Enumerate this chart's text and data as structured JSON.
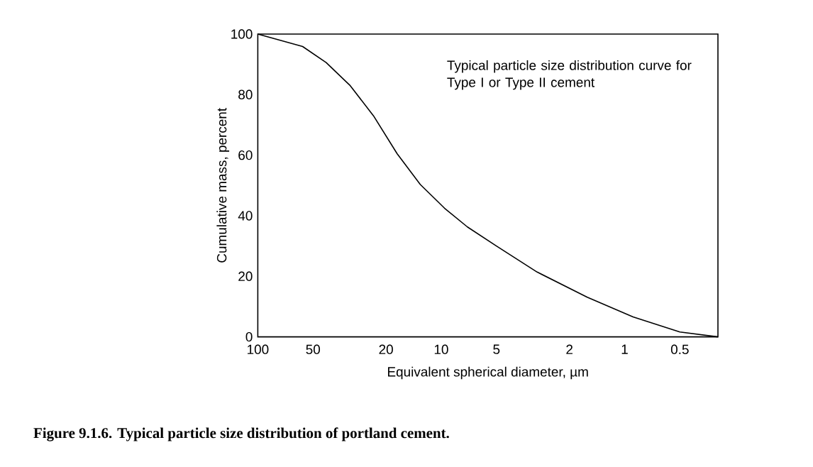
{
  "chart_data": {
    "type": "line",
    "xlabel": "Equivalent spherical diameter, µm",
    "ylabel": "Cumulative mass, percent",
    "annotations": [
      "Typical particle size distribution curve for Type I or Type II cement",
      "**Figure 9.1.6.  Typical particle size distribution of portland cement.**"
    ],
    "x": [
      100,
      57,
      42.4,
      31.5,
      23.4,
      17.4,
      13,
      9.6,
      7.2,
      5,
      3,
      1.6,
      0.9,
      0.5,
      0.31
    ],
    "values": [
      100,
      95.9,
      90.6,
      83.1,
      73,
      60.5,
      50.3,
      42.5,
      36.3,
      30,
      21.4,
      13.1,
      6.6,
      1.6,
      0
    ],
    "color": "#000000",
    "log": "x",
    "xlim": [
      100,
      0.31
    ],
    "ylim": [
      0,
      100
    ],
    "xticks": [
      100,
      50,
      20,
      10,
      5,
      2,
      1,
      0.5
    ],
    "yticks": [
      0,
      20,
      40,
      60,
      80,
      100
    ]
  }
}
